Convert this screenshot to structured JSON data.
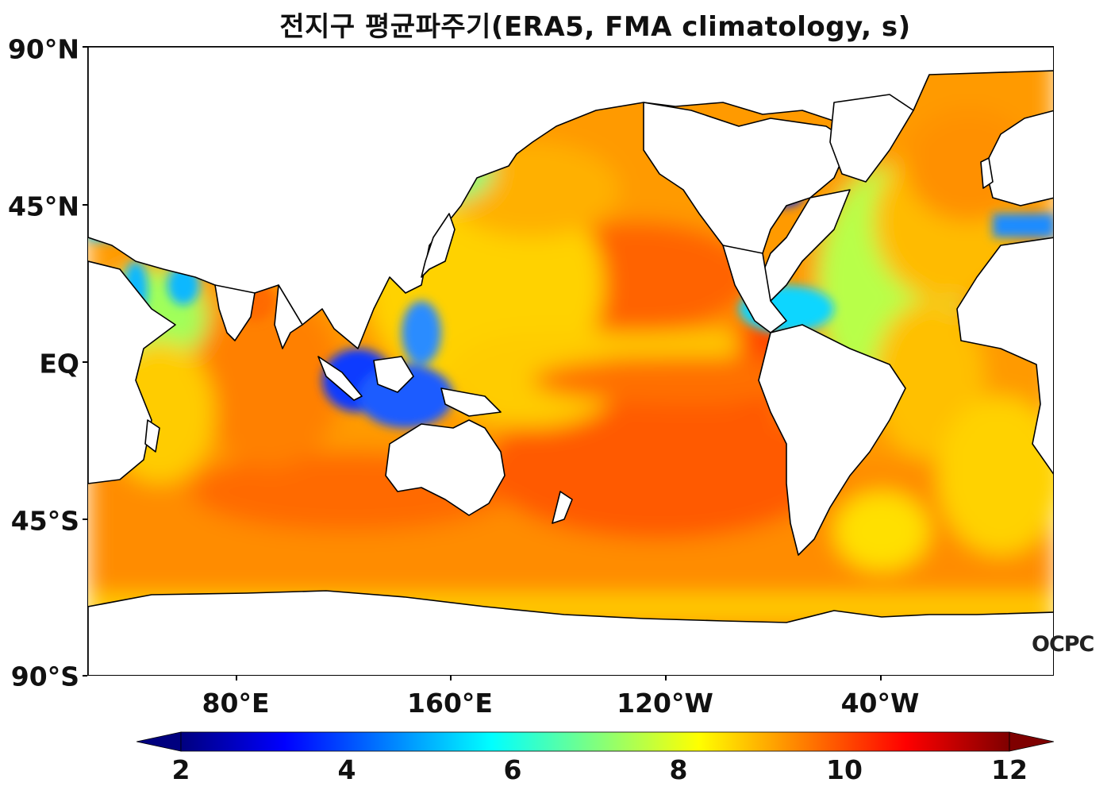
{
  "title": "전지구 평균파주기(ERA5, FMA climatology, s)",
  "y_axis": {
    "ticks": [
      "90°N",
      "45°N",
      "EQ",
      "45°S",
      "90°S"
    ]
  },
  "x_axis": {
    "ticks": [
      "80°E",
      "160°E",
      "120°W",
      "40°W"
    ]
  },
  "colorbar": {
    "min": 2,
    "max": 12,
    "extend": "both",
    "ticks": [
      "2",
      "4",
      "6",
      "8",
      "10",
      "12"
    ],
    "colormap": [
      "#00007f",
      "#0000ff",
      "#007fff",
      "#00ffff",
      "#7fff7f",
      "#ffff00",
      "#ff7f00",
      "#ff0000",
      "#7f0000"
    ]
  },
  "map": {
    "variable": "mean wave period",
    "units": "s",
    "projection": "PlateCarree, central longitude ~157°E",
    "land_color": "#ffffff",
    "coast_color": "#000000"
  },
  "logo": {
    "text": "OCPC"
  }
}
